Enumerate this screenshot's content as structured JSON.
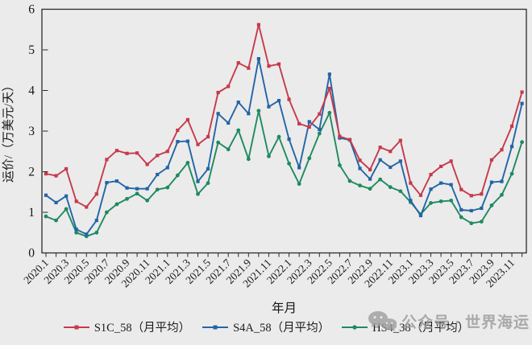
{
  "figure": {
    "background": "#ebebeb",
    "watermark": {
      "icon": "wechat-bubbles-icon",
      "text": "公众号 · 世界海运",
      "color": "#9e9e9e"
    }
  },
  "chart_data": {
    "type": "line",
    "title": "",
    "xlabel": "年月",
    "ylabel": "运价/（万美元/天）",
    "ylim": [
      0,
      6
    ],
    "yticks": [
      0,
      1,
      2,
      3,
      4,
      5,
      6
    ],
    "grid": false,
    "legend_position": "bottom",
    "categories": [
      "2020.1",
      "2020.2",
      "2020.3",
      "2020.4",
      "2020.5",
      "2020.6",
      "2020.7",
      "2020.8",
      "2020.9",
      "2020.10",
      "2020.11",
      "2020.12",
      "2021.1",
      "2021.2",
      "2021.3",
      "2021.4",
      "2021.5",
      "2021.6",
      "2021.7",
      "2021.8",
      "2021.9",
      "2021.10",
      "2021.11",
      "2021.12",
      "2022.1",
      "2022.2",
      "2022.3",
      "2022.4",
      "2022.5",
      "2022.6",
      "2022.7",
      "2022.8",
      "2022.9",
      "2022.10",
      "2022.11",
      "2022.12",
      "2023.1",
      "2023.2",
      "2023.3",
      "2023.4",
      "2023.5",
      "2023.6",
      "2023.7",
      "2023.8",
      "2023.9",
      "2023.10",
      "2023.11",
      "2023.12"
    ],
    "xtick_labels": [
      "2020.1",
      "2020.3",
      "2020.5",
      "2020.7",
      "2020.9",
      "2020.11",
      "2021.1",
      "2021.3",
      "2021.5",
      "2021.7",
      "2021.9",
      "2021.11",
      "2022.1",
      "2022.3",
      "2022.5",
      "2022.7",
      "2022.9",
      "2022.11",
      "2023.1",
      "2023.3",
      "2023.5",
      "2023.7",
      "2023.9",
      "2023.11"
    ],
    "series": [
      {
        "name": "S1C_58（月平均）",
        "color": "#c63a4b",
        "marker": "square",
        "values": [
          1.95,
          1.9,
          2.07,
          1.27,
          1.13,
          1.45,
          2.3,
          2.52,
          2.45,
          2.46,
          2.18,
          2.4,
          2.5,
          3.02,
          3.28,
          2.67,
          2.86,
          3.95,
          4.1,
          4.68,
          4.55,
          5.62,
          4.6,
          4.65,
          3.78,
          3.18,
          3.1,
          3.42,
          4.05,
          2.87,
          2.79,
          2.28,
          2.05,
          2.6,
          2.5,
          2.77,
          1.72,
          1.42,
          1.93,
          2.13,
          2.26,
          1.56,
          1.41,
          1.45,
          2.29,
          2.54,
          3.12,
          3.96
        ]
      },
      {
        "name": "S4A_58（月平均）",
        "color": "#2365a6",
        "marker": "square",
        "values": [
          1.42,
          1.24,
          1.4,
          0.58,
          0.46,
          0.8,
          1.73,
          1.77,
          1.6,
          1.58,
          1.58,
          1.93,
          2.1,
          2.74,
          2.75,
          1.76,
          2.07,
          3.43,
          3.2,
          3.71,
          3.43,
          4.78,
          3.6,
          3.75,
          2.8,
          2.1,
          3.23,
          3.04,
          4.4,
          2.83,
          2.78,
          2.08,
          1.82,
          2.29,
          2.11,
          2.26,
          1.29,
          0.92,
          1.57,
          1.72,
          1.68,
          1.06,
          1.04,
          1.1,
          1.74,
          1.76,
          2.62,
          3.68
        ]
      },
      {
        "name": "HS4_38（月平均）",
        "color": "#1f8a60",
        "marker": "circle",
        "values": [
          0.9,
          0.8,
          1.08,
          0.5,
          0.41,
          0.5,
          1.0,
          1.2,
          1.33,
          1.46,
          1.29,
          1.56,
          1.61,
          1.91,
          2.22,
          1.45,
          1.72,
          2.72,
          2.55,
          3.02,
          2.31,
          3.5,
          2.38,
          2.86,
          2.2,
          1.7,
          2.33,
          2.94,
          3.45,
          2.16,
          1.77,
          1.66,
          1.58,
          1.81,
          1.62,
          1.52,
          1.25,
          0.95,
          1.23,
          1.27,
          1.29,
          0.88,
          0.73,
          0.77,
          1.17,
          1.43,
          1.95,
          2.73
        ]
      }
    ]
  }
}
